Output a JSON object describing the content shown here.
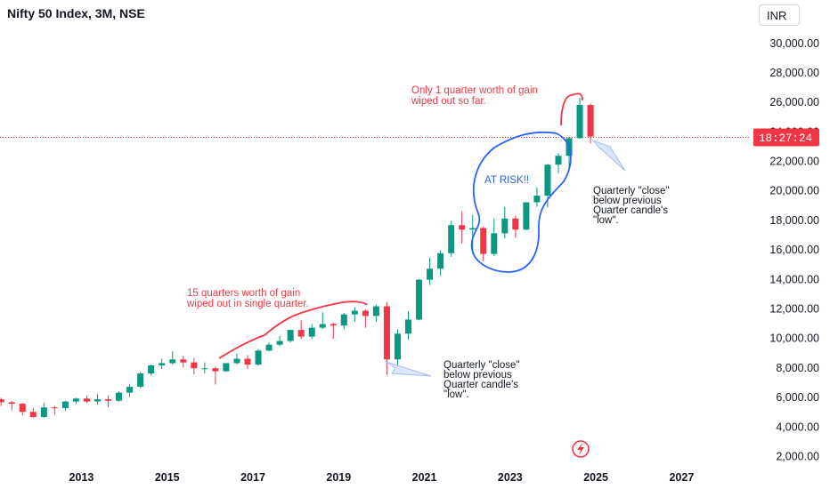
{
  "header": {
    "title": "Nifty 50 Index, 3M, NSE",
    "currency": "INR"
  },
  "price_label": {
    "text": "18:27:24",
    "value": 23600,
    "color": "#f23645"
  },
  "colors": {
    "up": "#089981",
    "down": "#f23645",
    "annotation_blue": "#2962ff",
    "grid_line": "#f23645"
  },
  "chart_data": {
    "type": "candlestick",
    "title": "",
    "y_ticks": [
      2000,
      4000,
      6000,
      8000,
      10000,
      12000,
      14000,
      16000,
      18000,
      20000,
      22000,
      24000,
      26000,
      28000,
      30000
    ],
    "y_tick_labels": [
      "2,000.00",
      "4,000.00",
      "6,000.00",
      "8,000.00",
      "10,000.00",
      "12,000.00",
      "14,000.00",
      "16,000.00",
      "18,000.00",
      "20,000.00",
      "22,000.00",
      "24,000.00",
      "26,000.00",
      "28,000.00",
      "30,000.00"
    ],
    "x_ticks": [
      2013,
      2015,
      2017,
      2019,
      2021,
      2023,
      2025,
      2027
    ],
    "x_tick_labels": [
      "2013",
      "2015",
      "2017",
      "2019",
      "2021",
      "2023",
      "2025",
      "2027"
    ],
    "ylim": [
      1700,
      31100
    ],
    "xlim": [
      2011.1,
      2028.55
    ],
    "candles": [
      {
        "t": 2011.125,
        "o": 5850,
        "h": 5950,
        "l": 5400,
        "c": 5650
      },
      {
        "t": 2011.375,
        "o": 5650,
        "h": 5750,
        "l": 5100,
        "c": 5550
      },
      {
        "t": 2011.625,
        "o": 5550,
        "h": 5600,
        "l": 4750,
        "c": 5000
      },
      {
        "t": 2011.875,
        "o": 5000,
        "h": 5250,
        "l": 4600,
        "c": 4650
      },
      {
        "t": 2012.125,
        "o": 4650,
        "h": 5600,
        "l": 4600,
        "c": 5300
      },
      {
        "t": 2012.375,
        "o": 5300,
        "h": 5400,
        "l": 4800,
        "c": 5250
      },
      {
        "t": 2012.625,
        "o": 5250,
        "h": 5750,
        "l": 5050,
        "c": 5700
      },
      {
        "t": 2012.875,
        "o": 5700,
        "h": 5950,
        "l": 5550,
        "c": 5900
      },
      {
        "t": 2013.125,
        "o": 5900,
        "h": 6100,
        "l": 5600,
        "c": 5700
      },
      {
        "t": 2013.375,
        "o": 5700,
        "h": 6200,
        "l": 5500,
        "c": 5850
      },
      {
        "t": 2013.625,
        "o": 5850,
        "h": 6100,
        "l": 5300,
        "c": 5750
      },
      {
        "t": 2013.875,
        "o": 5750,
        "h": 6400,
        "l": 5700,
        "c": 6300
      },
      {
        "t": 2014.125,
        "o": 6300,
        "h": 6900,
        "l": 6000,
        "c": 6700
      },
      {
        "t": 2014.375,
        "o": 6700,
        "h": 7700,
        "l": 6600,
        "c": 7600
      },
      {
        "t": 2014.625,
        "o": 7600,
        "h": 8200,
        "l": 7450,
        "c": 8150
      },
      {
        "t": 2014.875,
        "o": 8150,
        "h": 8600,
        "l": 7900,
        "c": 8300
      },
      {
        "t": 2015.125,
        "o": 8300,
        "h": 9100,
        "l": 8200,
        "c": 8550
      },
      {
        "t": 2015.375,
        "o": 8550,
        "h": 8800,
        "l": 8000,
        "c": 8350
      },
      {
        "t": 2015.625,
        "o": 8350,
        "h": 8650,
        "l": 7550,
        "c": 7950
      },
      {
        "t": 2015.875,
        "o": 7950,
        "h": 8350,
        "l": 7600,
        "c": 7950
      },
      {
        "t": 2016.125,
        "o": 7950,
        "h": 8050,
        "l": 6850,
        "c": 7750
      },
      {
        "t": 2016.375,
        "o": 7750,
        "h": 8300,
        "l": 7700,
        "c": 8300
      },
      {
        "t": 2016.625,
        "o": 8300,
        "h": 8950,
        "l": 8200,
        "c": 8600
      },
      {
        "t": 2016.875,
        "o": 8600,
        "h": 8850,
        "l": 7900,
        "c": 8200
      },
      {
        "t": 2017.125,
        "o": 8200,
        "h": 9250,
        "l": 8150,
        "c": 9150
      },
      {
        "t": 2017.375,
        "o": 9150,
        "h": 9700,
        "l": 9100,
        "c": 9550
      },
      {
        "t": 2017.625,
        "o": 9550,
        "h": 10150,
        "l": 9450,
        "c": 9800
      },
      {
        "t": 2017.875,
        "o": 9800,
        "h": 10550,
        "l": 9700,
        "c": 10550
      },
      {
        "t": 2018.125,
        "o": 10550,
        "h": 11200,
        "l": 9950,
        "c": 10100
      },
      {
        "t": 2018.375,
        "o": 10100,
        "h": 10950,
        "l": 9950,
        "c": 10700
      },
      {
        "t": 2018.625,
        "o": 10700,
        "h": 11750,
        "l": 10600,
        "c": 10950
      },
      {
        "t": 2018.875,
        "o": 10950,
        "h": 11050,
        "l": 9950,
        "c": 10850
      },
      {
        "t": 2019.125,
        "o": 10850,
        "h": 11700,
        "l": 10600,
        "c": 11600
      },
      {
        "t": 2019.375,
        "o": 11600,
        "h": 12100,
        "l": 11100,
        "c": 11850
      },
      {
        "t": 2019.625,
        "o": 11850,
        "h": 11950,
        "l": 10700,
        "c": 11500
      },
      {
        "t": 2019.875,
        "o": 11500,
        "h": 12250,
        "l": 11100,
        "c": 12150
      },
      {
        "t": 2020.125,
        "o": 12150,
        "h": 12450,
        "l": 7500,
        "c": 8550
      },
      {
        "t": 2020.375,
        "o": 8550,
        "h": 10600,
        "l": 7950,
        "c": 10300
      },
      {
        "t": 2020.625,
        "o": 10300,
        "h": 11800,
        "l": 9900,
        "c": 11250
      },
      {
        "t": 2020.875,
        "o": 11250,
        "h": 14000,
        "l": 11200,
        "c": 13950
      },
      {
        "t": 2021.125,
        "o": 13950,
        "h": 15450,
        "l": 13600,
        "c": 14700
      },
      {
        "t": 2021.375,
        "o": 14700,
        "h": 15950,
        "l": 14200,
        "c": 15750
      },
      {
        "t": 2021.625,
        "o": 15750,
        "h": 17950,
        "l": 15500,
        "c": 17650
      },
      {
        "t": 2021.875,
        "o": 17650,
        "h": 18600,
        "l": 16400,
        "c": 17350
      },
      {
        "t": 2022.125,
        "o": 17350,
        "h": 18350,
        "l": 15700,
        "c": 17450
      },
      {
        "t": 2022.375,
        "o": 17450,
        "h": 17550,
        "l": 15200,
        "c": 15700
      },
      {
        "t": 2022.625,
        "o": 15700,
        "h": 18100,
        "l": 15550,
        "c": 17100
      },
      {
        "t": 2022.875,
        "o": 17100,
        "h": 18900,
        "l": 16750,
        "c": 18100
      },
      {
        "t": 2023.125,
        "o": 18100,
        "h": 18300,
        "l": 16800,
        "c": 17350
      },
      {
        "t": 2023.375,
        "o": 17350,
        "h": 19200,
        "l": 17300,
        "c": 19200
      },
      {
        "t": 2023.625,
        "o": 19200,
        "h": 20200,
        "l": 18900,
        "c": 19650
      },
      {
        "t": 2023.875,
        "o": 19650,
        "h": 21800,
        "l": 18850,
        "c": 21750
      },
      {
        "t": 2024.125,
        "o": 21750,
        "h": 22550,
        "l": 21150,
        "c": 22350
      },
      {
        "t": 2024.375,
        "o": 22350,
        "h": 23650,
        "l": 21300,
        "c": 23550
      },
      {
        "t": 2024.625,
        "o": 23550,
        "h": 26300,
        "l": 23500,
        "c": 25800
      },
      {
        "t": 2024.875,
        "o": 25800,
        "h": 25900,
        "l": 23200,
        "c": 23650
      }
    ]
  },
  "annotations": {
    "top_note": [
      "Only 1 quarter worth of gain",
      "wiped out so far."
    ],
    "at_risk": "AT RISK!!",
    "right_note": [
      "Quarterly \"close\"",
      "below previous",
      "Quarter candle's",
      "\"low\"."
    ],
    "mid_note": [
      "15 quarters worth of gain",
      "wiped out in single quarter."
    ],
    "bottom_note": [
      "Quarterly \"close\"",
      "below previous",
      "Quarter candle's",
      "\"low\"."
    ]
  }
}
